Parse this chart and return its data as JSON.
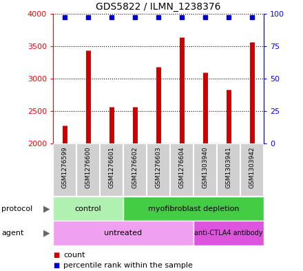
{
  "title": "GDS5822 / ILMN_1238376",
  "samples": [
    "GSM1276599",
    "GSM1276600",
    "GSM1276601",
    "GSM1276602",
    "GSM1276603",
    "GSM1276604",
    "GSM1303940",
    "GSM1303941",
    "GSM1303942"
  ],
  "counts": [
    2280,
    3430,
    2565,
    2570,
    3185,
    3640,
    3100,
    2830,
    3565
  ],
  "percentiles": [
    97,
    97,
    97,
    97,
    97,
    97,
    97,
    97,
    97
  ],
  "ylim_left": [
    2000,
    4000
  ],
  "ylim_right": [
    0,
    100
  ],
  "yticks_left": [
    2000,
    2500,
    3000,
    3500,
    4000
  ],
  "yticks_right": [
    0,
    25,
    50,
    75,
    100
  ],
  "bar_color": "#cc0000",
  "dot_color": "#0000cc",
  "n_control": 3,
  "n_untreated": 6,
  "protocol_control_color": "#b0f0b0",
  "protocol_deplete_color": "#44cc44",
  "agent_untreated_color": "#f0a0f0",
  "agent_antibody_color": "#dd55dd",
  "sample_bg_color": "#d0d0d0",
  "sample_border_color": "#ffffff",
  "legend_count_color": "#cc0000",
  "legend_dot_color": "#0000cc"
}
